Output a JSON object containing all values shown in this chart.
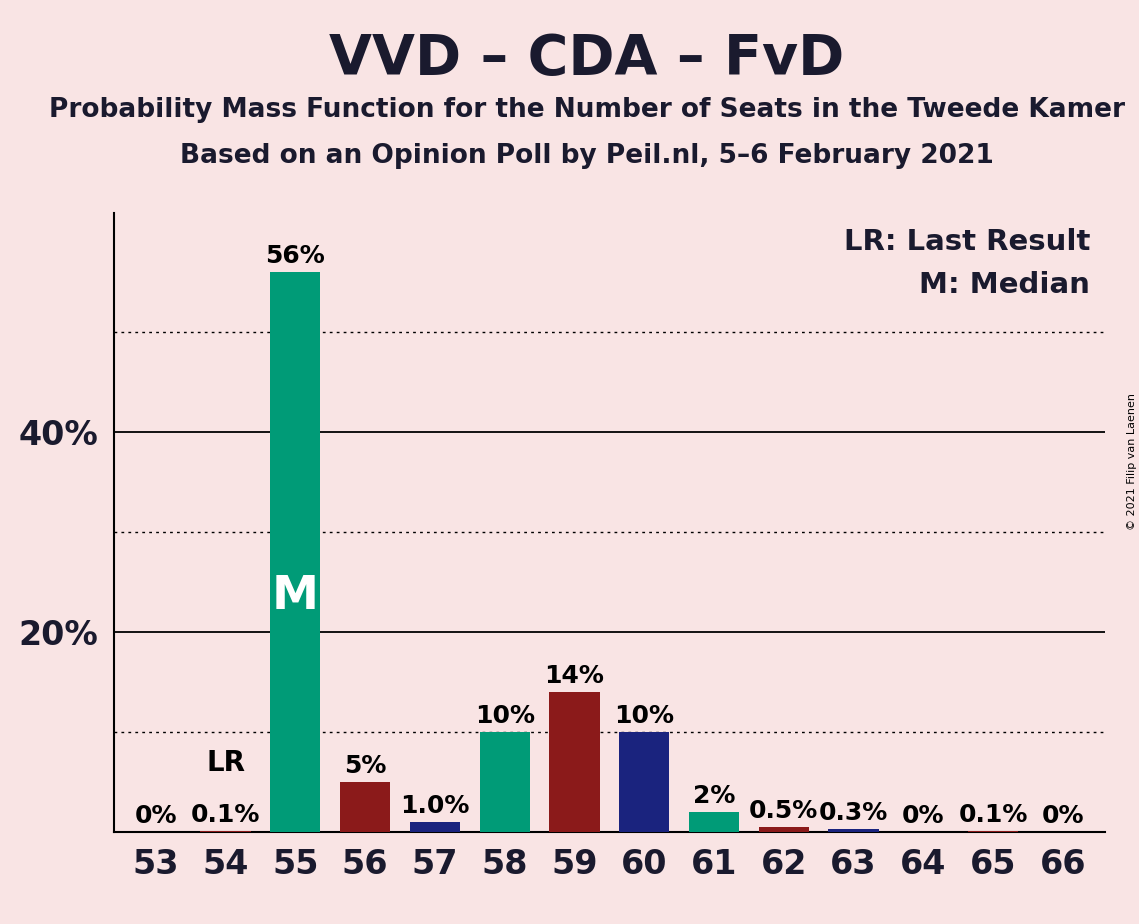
{
  "title": "VVD – CDA – FvD",
  "subtitle1": "Probability Mass Function for the Number of Seats in the Tweede Kamer",
  "subtitle2": "Based on an Opinion Poll by Peil.nl, 5–6 February 2021",
  "copyright": "© 2021 Filip van Laenen",
  "legend_lr": "LR: Last Result",
  "legend_m": "M: Median",
  "background_color": "#f9e4e4",
  "seats": [
    53,
    54,
    55,
    56,
    57,
    58,
    59,
    60,
    61,
    62,
    63,
    64,
    65,
    66
  ],
  "values": [
    0.0,
    0.1,
    56.0,
    5.0,
    1.0,
    10.0,
    14.0,
    10.0,
    2.0,
    0.5,
    0.3,
    0.0,
    0.1,
    0.0
  ],
  "labels": [
    "0%",
    "0.1%",
    "56%",
    "5%",
    "1.0%",
    "10%",
    "14%",
    "10%",
    "2%",
    "0.5%",
    "0.3%",
    "0%",
    "0.1%",
    "0%"
  ],
  "show_label": [
    true,
    true,
    true,
    true,
    true,
    true,
    true,
    true,
    true,
    true,
    true,
    true,
    true,
    true
  ],
  "colors": [
    "#8b1a1a",
    "#8b1a1a",
    "#009b77",
    "#8b1a1a",
    "#1a237e",
    "#009b77",
    "#8b1a1a",
    "#1a237e",
    "#009b77",
    "#8b1a1a",
    "#1a237e",
    "#8b1a1a",
    "#8b1a1a",
    "#1a237e"
  ],
  "lr_seat": 54,
  "median_seat": 55,
  "lr_label": "LR",
  "median_label": "M",
  "ylim": [
    0,
    62
  ],
  "ytick_positions": [
    20,
    40
  ],
  "ytick_labels": [
    "20%",
    "40%"
  ],
  "solid_gridlines": [
    20,
    40
  ],
  "dotted_gridlines": [
    10,
    30,
    50
  ],
  "title_fontsize": 40,
  "subtitle_fontsize": 19,
  "axis_fontsize": 24,
  "bar_label_fontsize": 18,
  "legend_fontsize": 21,
  "median_fontsize": 34,
  "lr_fontsize": 20
}
